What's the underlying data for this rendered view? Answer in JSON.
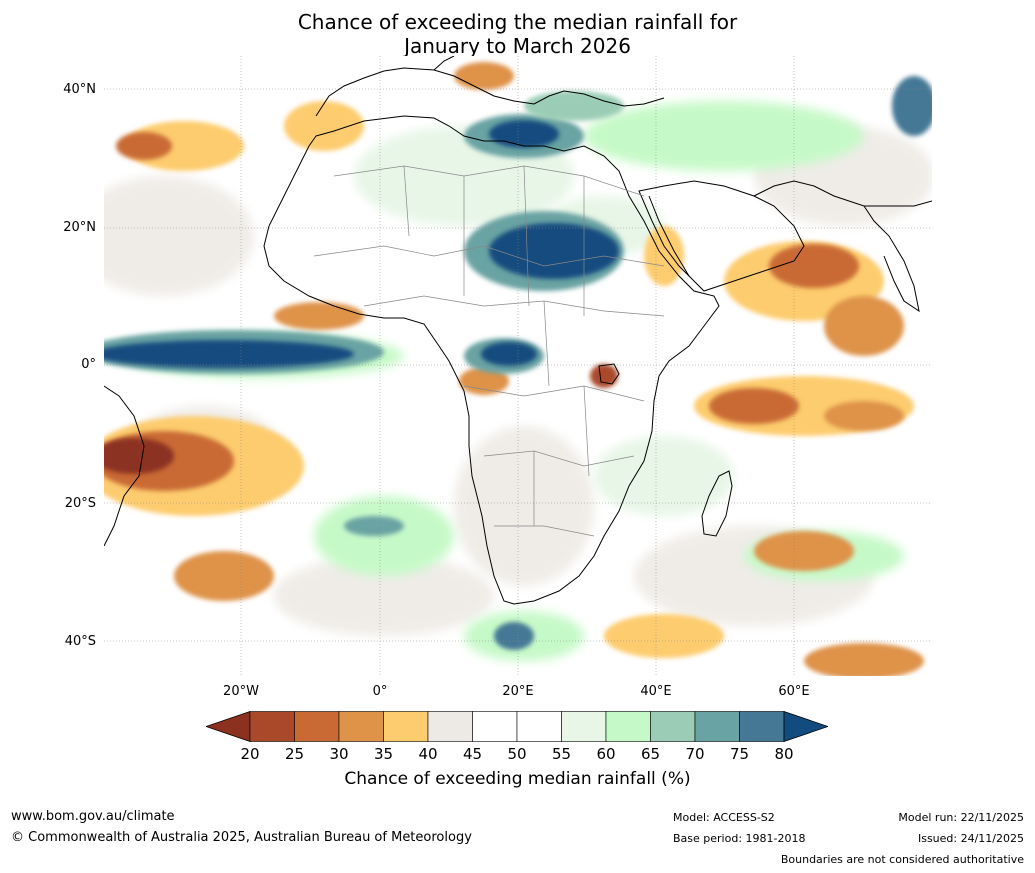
{
  "title": {
    "line1": "Chance of exceeding the median rainfall for",
    "line2": "January to March 2026"
  },
  "map": {
    "lat_ticks": [
      "40°N",
      "20°N",
      "0°",
      "20°S",
      "40°S"
    ],
    "lon_ticks": [
      "20°W",
      "0°",
      "20°E",
      "40°E",
      "60°E"
    ],
    "ocean_color": "#ffffff",
    "coast_color": "#000000",
    "border_color": "#888888"
  },
  "colorbar": {
    "ticks": [
      "20",
      "25",
      "30",
      "35",
      "40",
      "45",
      "50",
      "55",
      "60",
      "65",
      "70",
      "75",
      "80"
    ],
    "colors": [
      "#a9492a",
      "#c96a34",
      "#de9348",
      "#fdcc6e",
      "#ede9e4",
      "#ffffff",
      "#ffffff",
      "#e7f6e7",
      "#c6f9c8",
      "#9bcdb6",
      "#6aa3a3",
      "#457895"
    ],
    "under_color": "#8c3020",
    "over_color": "#124c7f",
    "label": "Chance of exceeding median rainfall (%)"
  },
  "footer": {
    "website": "www.bom.gov.au/climate",
    "copyright": "© Commonwealth of Australia 2025, Australian Bureau of Meteorology",
    "model": "Model: ACCESS-S2",
    "base_period": "Base period: 1981-2018",
    "model_run": "Model run: 22/11/2025",
    "issued": "Issued: 24/11/2025",
    "disclaimer": "Boundaries are not considered authoritative"
  }
}
